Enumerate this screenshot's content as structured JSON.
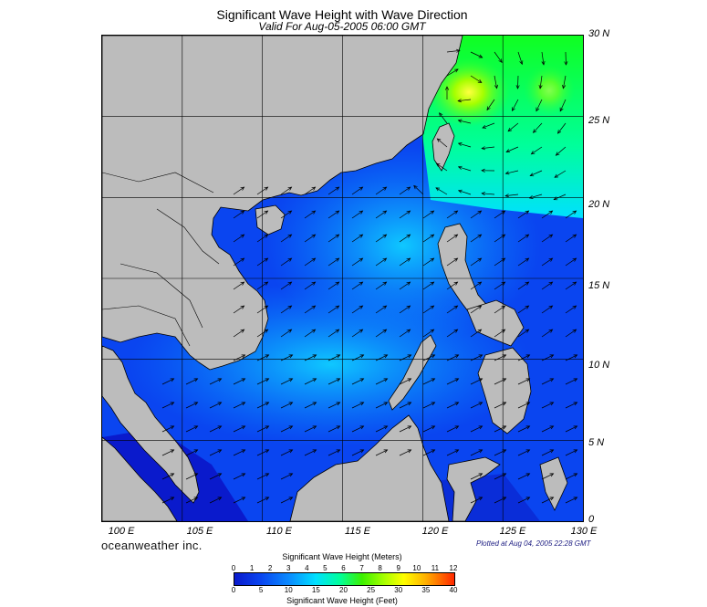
{
  "title": "Significant Wave Height with Wave Direction",
  "subtitle": "Valid For Aug-05-2005 06:00 GMT",
  "lat_labels": [
    "30 N",
    "25 N",
    "20 N",
    "15 N",
    "10 N",
    "5 N",
    "0"
  ],
  "lon_labels": [
    "100 E",
    "105 E",
    "110 E",
    "115 E",
    "120 E",
    "125 E",
    "130 E"
  ],
  "brand": "oceanweather inc.",
  "plotted": "Plotted at Aug 04, 2005 22:28 GMT",
  "legend": {
    "title_meters": "Significant Wave Height (Meters)",
    "title_feet": "Significant Wave Height (Feet)",
    "meters_ticks": [
      "0",
      "1",
      "2",
      "3",
      "4",
      "5",
      "6",
      "7",
      "8",
      "9",
      "10",
      "11",
      "12"
    ],
    "feet_ticks": [
      "0",
      "5",
      "10",
      "15",
      "20",
      "25",
      "30",
      "35",
      "40"
    ]
  },
  "colors": {
    "land": "#bcbcbc",
    "low": "#0a2dd8",
    "mid": "#0a8cff",
    "high": "#00e8ff",
    "peak": "#33ff33",
    "max": "#ffff00"
  }
}
